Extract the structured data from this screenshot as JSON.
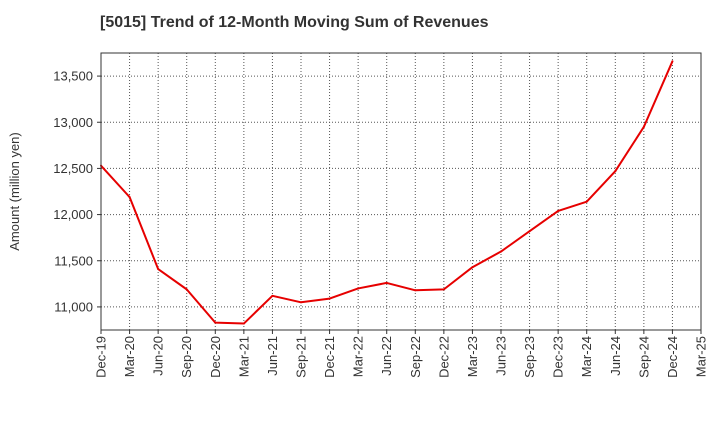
{
  "chart_data": {
    "type": "line",
    "title": "[5015]  Trend of 12-Month Moving Sum of Revenues",
    "xlabel": "",
    "ylabel": "Amount (million yen)",
    "categories": [
      "Dec-19",
      "Mar-20",
      "Jun-20",
      "Sep-20",
      "Dec-20",
      "Mar-21",
      "Jun-21",
      "Sep-21",
      "Dec-21",
      "Mar-22",
      "Jun-22",
      "Sep-22",
      "Dec-22",
      "Mar-23",
      "Jun-23",
      "Sep-23",
      "Dec-23",
      "Mar-24",
      "Jun-24",
      "Sep-24",
      "Dec-24",
      "Mar-25"
    ],
    "series": [
      {
        "name": "",
        "color": "#e60000",
        "values": [
          12530,
          12190,
          11410,
          11190,
          10830,
          10820,
          11120,
          11050,
          11090,
          11200,
          11260,
          11180,
          11190,
          11430,
          11600,
          11820,
          12040,
          12140,
          12470,
          12950,
          13660,
          null
        ]
      }
    ],
    "yticks": [
      11000,
      11500,
      12000,
      12500,
      13000,
      13500
    ],
    "ytick_labels": [
      "11,000",
      "11,500",
      "12,000",
      "12,500",
      "13,000",
      "13,500"
    ],
    "ylim": [
      10750,
      13750
    ],
    "grid": true,
    "grid_style": "dotted",
    "legend": "none"
  }
}
